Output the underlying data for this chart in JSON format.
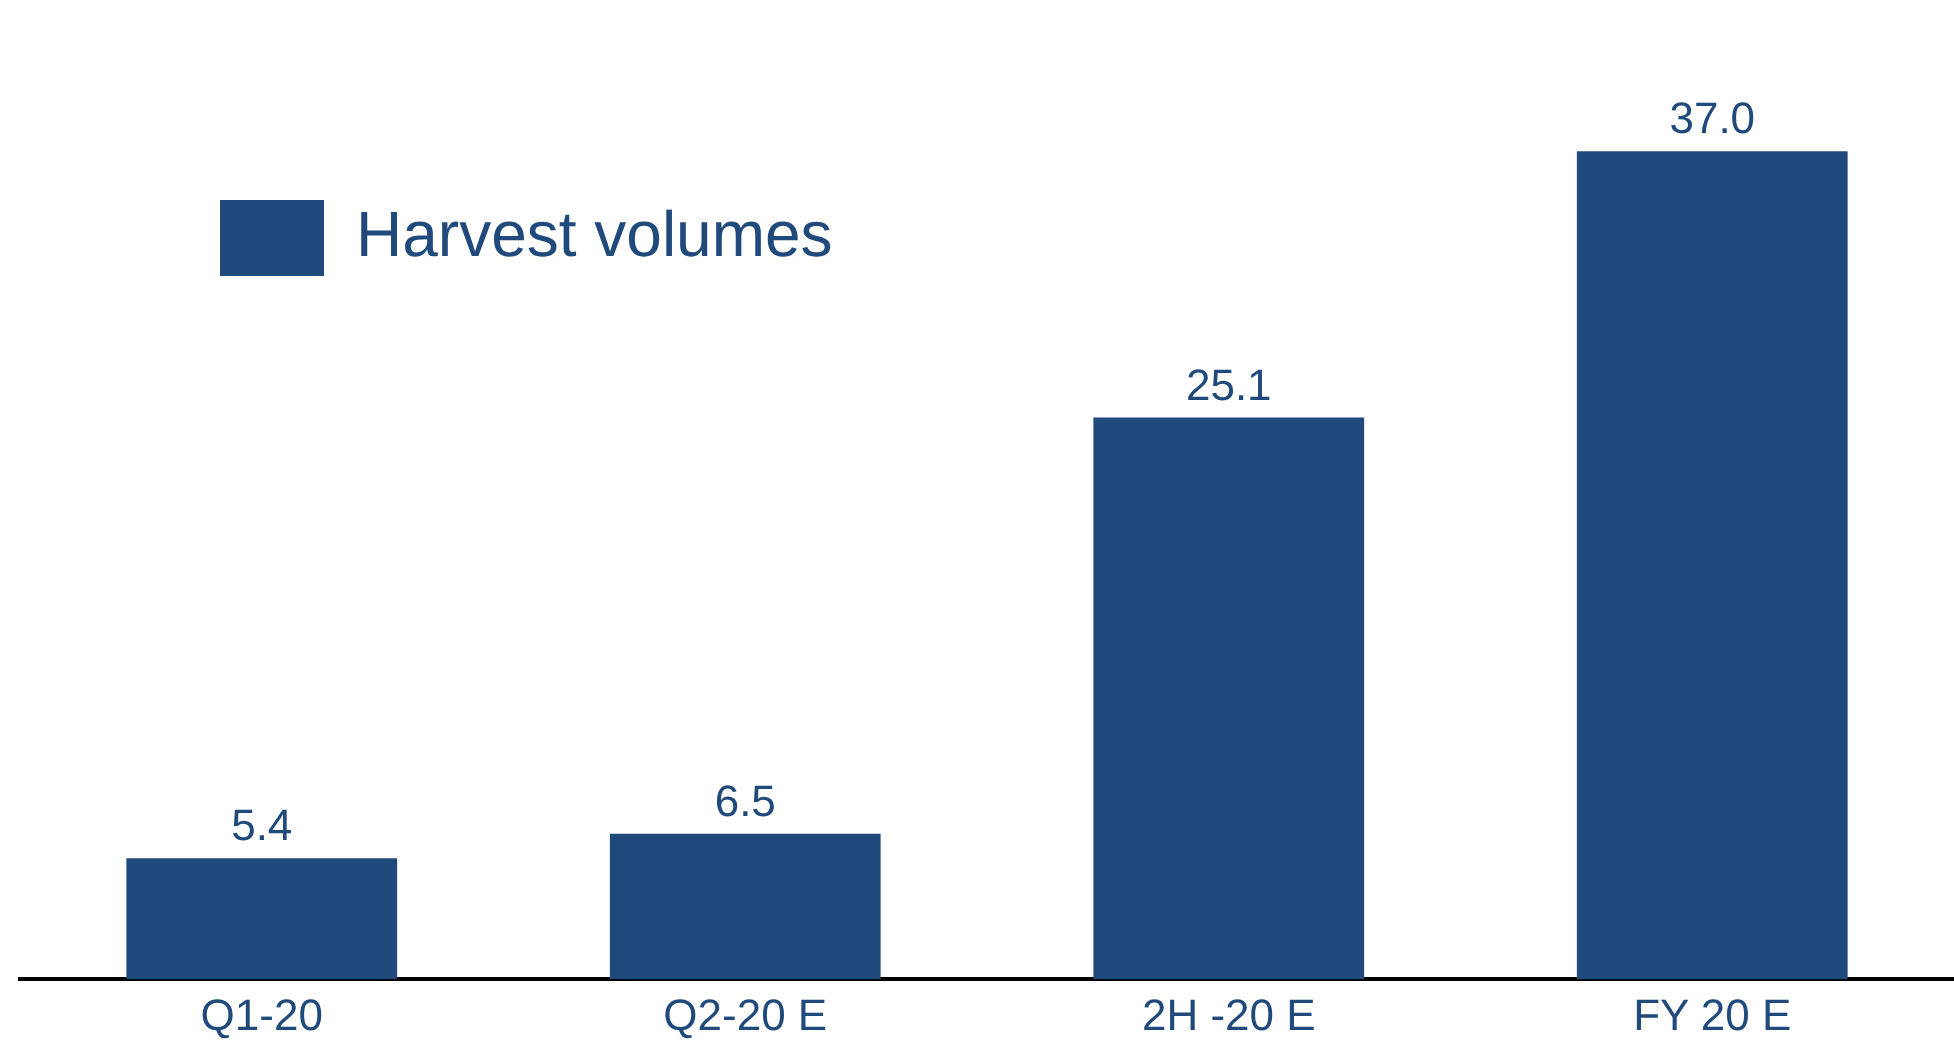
{
  "chart_data": {
    "type": "bar",
    "categories": [
      "Q1-20",
      "Q2-20 E",
      "2H -20 E",
      "FY 20 E"
    ],
    "series": [
      {
        "name": "Harvest volumes",
        "color": "#214a7c",
        "values": [
          5.4,
          6.5,
          25.1,
          37.0
        ],
        "value_labels": [
          "5.4",
          "6.5",
          "25.1",
          "37.0"
        ]
      }
    ],
    "legend": "top left",
    "grid": false
  }
}
